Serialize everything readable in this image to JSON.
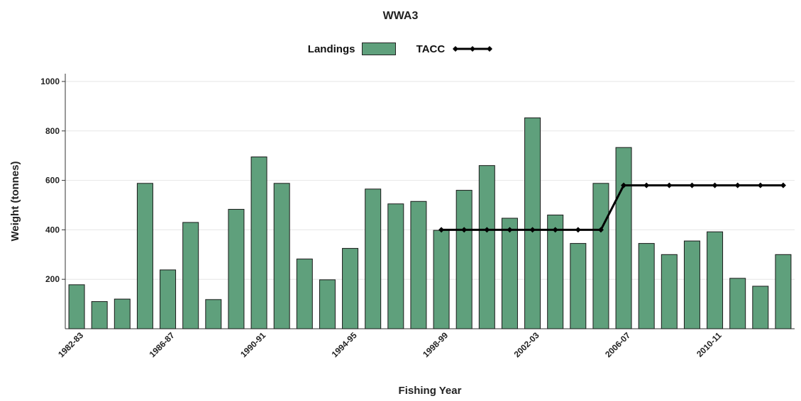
{
  "chart_data": {
    "type": "bar",
    "title": "WWA3",
    "xlabel": "Fishing Year",
    "ylabel": "Weight (tonnes)",
    "ylim": [
      0,
      1000
    ],
    "yticks": [
      200,
      400,
      600,
      800,
      1000
    ],
    "grid": "horizontal",
    "legend_position": "top-center",
    "categories": [
      "1982-83",
      "1983-84",
      "1984-85",
      "1985-86",
      "1986-87",
      "1987-88",
      "1988-89",
      "1989-90",
      "1990-91",
      "1991-92",
      "1992-93",
      "1993-94",
      "1994-95",
      "1995-96",
      "1996-97",
      "1997-98",
      "1998-99",
      "1999-00",
      "2000-01",
      "2001-02",
      "2002-03",
      "2003-04",
      "2004-05",
      "2005-06",
      "2006-07",
      "2007-08",
      "2008-09",
      "2009-10",
      "2010-11",
      "2011-12",
      "2012-13",
      "2013-14"
    ],
    "visible_tick_labels": [
      "1982-83",
      "1986-87",
      "1990-91",
      "1994-95",
      "1998-99",
      "2002-03",
      "2006-07",
      "2010-11"
    ],
    "series": [
      {
        "name": "Landings",
        "kind": "bar",
        "color": "#5fa07c",
        "values": [
          178,
          110,
          120,
          588,
          238,
          430,
          118,
          483,
          695,
          588,
          282,
          198,
          325,
          565,
          505,
          515,
          398,
          560,
          660,
          447,
          853,
          460,
          345,
          588,
          733,
          345,
          300,
          355,
          392,
          204,
          172,
          300
        ]
      },
      {
        "name": "TACC",
        "kind": "line",
        "color": "#000000",
        "values": [
          null,
          null,
          null,
          null,
          null,
          null,
          null,
          null,
          null,
          null,
          null,
          null,
          null,
          null,
          null,
          null,
          400,
          400,
          400,
          400,
          400,
          400,
          400,
          400,
          580,
          580,
          580,
          580,
          580,
          580,
          580,
          580
        ]
      }
    ]
  }
}
